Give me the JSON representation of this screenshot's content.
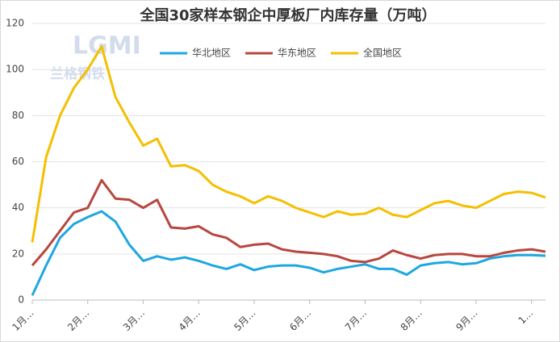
{
  "chart_data": {
    "type": "line",
    "title": "全国30家样本钢企中厚板厂内库存量（万吨）",
    "watermark": [
      "LGMI",
      "兰格钢铁"
    ],
    "categories": [
      "1月…",
      null,
      null,
      null,
      "2月…",
      null,
      null,
      null,
      "3月…",
      null,
      null,
      null,
      "4月…",
      null,
      null,
      null,
      "5月…",
      null,
      null,
      null,
      "6月…",
      null,
      null,
      null,
      "7月…",
      null,
      null,
      null,
      "8月…",
      null,
      null,
      null,
      "9月…",
      null,
      null,
      null,
      "1…",
      null
    ],
    "series": [
      {
        "name": "华北地区",
        "color": "#1fa7e1",
        "values": [
          2,
          15,
          27,
          33,
          36,
          38.5,
          34,
          24,
          17,
          19,
          17.5,
          18.5,
          17,
          15,
          13.5,
          15.5,
          13,
          14.5,
          15,
          15,
          14,
          12,
          13.5,
          14.5,
          15.5,
          13.5,
          13.5,
          11,
          15,
          16,
          16.5,
          15.5,
          16,
          18,
          19,
          19.5,
          19.5,
          19.2
        ]
      },
      {
        "name": "华东地区",
        "color": "#b7473f",
        "values": [
          15,
          22,
          30,
          38,
          40,
          52,
          44,
          43.5,
          40,
          43.5,
          31.5,
          31,
          32,
          28.5,
          27,
          23,
          24,
          24.5,
          22,
          21,
          20.5,
          20,
          19,
          17,
          16.5,
          18,
          21.5,
          19.5,
          18,
          19.5,
          20,
          20,
          19,
          19,
          20.5,
          21.5,
          22,
          21
        ]
      },
      {
        "name": "全国地区",
        "color": "#f5bf00",
        "values": [
          25,
          62,
          80,
          92,
          100,
          110,
          88,
          77,
          67,
          70,
          58,
          58.5,
          56,
          50,
          47,
          45,
          42,
          45,
          43,
          40,
          38,
          36,
          38.5,
          37,
          37.5,
          40,
          37,
          36,
          39,
          42,
          43,
          41,
          40,
          43,
          46,
          47,
          46.5,
          44.5
        ]
      }
    ],
    "ylim": [
      0,
      120
    ],
    "yticks": [
      0,
      20,
      40,
      60,
      80,
      100,
      120
    ],
    "grid": true,
    "legend": "top"
  }
}
